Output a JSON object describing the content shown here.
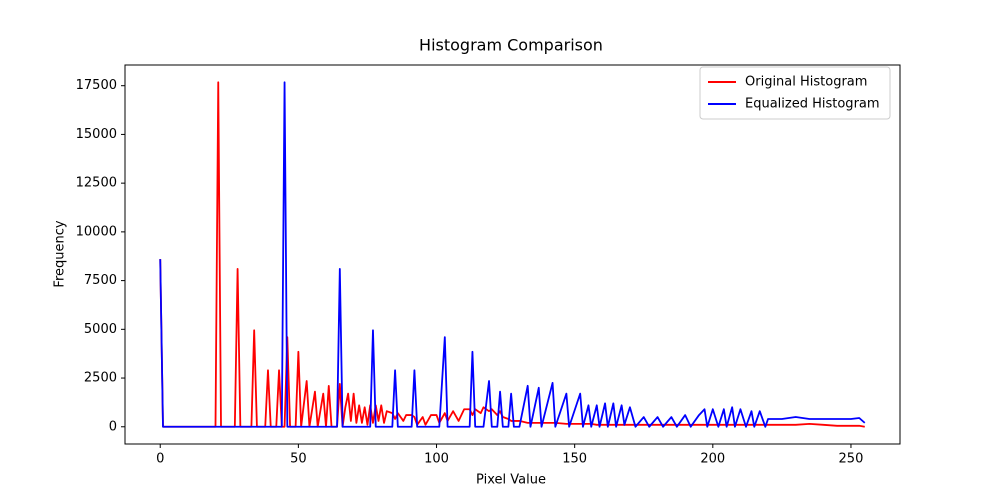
{
  "chart_data": {
    "type": "line",
    "title": "Histogram Comparison",
    "x_label": "Pixel Value",
    "y_label": "Frequency",
    "x": [
      0,
      1,
      20,
      21,
      22,
      27,
      28,
      29,
      33,
      34,
      35,
      38,
      39,
      40,
      42,
      43,
      44,
      45,
      46,
      47,
      49,
      50,
      51,
      53,
      54,
      56,
      57,
      59,
      60,
      61,
      62,
      64,
      65,
      66,
      67,
      68,
      69,
      70,
      71,
      72,
      73,
      74,
      75,
      76,
      77,
      78,
      79,
      80,
      81,
      82,
      84,
      85,
      86,
      88,
      89,
      91,
      92,
      93,
      95,
      96,
      98,
      100,
      101,
      103,
      104,
      106,
      108,
      110,
      112,
      113,
      114,
      116,
      117,
      119,
      120,
      122,
      123,
      124,
      126,
      127,
      128,
      130,
      133,
      134,
      137,
      138,
      142,
      143,
      147,
      148,
      152,
      153,
      155,
      156,
      158,
      159,
      161,
      162,
      164,
      165,
      167,
      168,
      170,
      172,
      175,
      177,
      180,
      182,
      185,
      187,
      190,
      192,
      195,
      197,
      198,
      200,
      202,
      204,
      205,
      207,
      208,
      210,
      212,
      214,
      215,
      217,
      219,
      220,
      225,
      230,
      235,
      240,
      245,
      250,
      253,
      255
    ],
    "series": [
      {
        "name": "Original Histogram",
        "color": "#ff0000",
        "values": [
          8600,
          0,
          0,
          17678,
          0,
          0,
          8100,
          0,
          0,
          4950,
          0,
          0,
          2900,
          0,
          0,
          2900,
          0,
          0,
          4600,
          0,
          0,
          3850,
          0,
          2350,
          0,
          1800,
          0,
          1700,
          0,
          2100,
          0,
          0,
          2200,
          0,
          1000,
          1700,
          300,
          1700,
          200,
          1100,
          200,
          1000,
          100,
          1100,
          200,
          1100,
          300,
          1100,
          200,
          800,
          700,
          400,
          700,
          300,
          600,
          600,
          500,
          100,
          500,
          100,
          600,
          600,
          200,
          700,
          300,
          800,
          300,
          900,
          900,
          600,
          900,
          700,
          1000,
          800,
          900,
          600,
          800,
          500,
          400,
          300,
          300,
          300,
          200,
          200,
          200,
          200,
          200,
          200,
          150,
          150,
          150,
          150,
          150,
          150,
          100,
          100,
          100,
          100,
          100,
          100,
          100,
          100,
          100,
          100,
          100,
          100,
          100,
          100,
          100,
          100,
          100,
          100,
          100,
          100,
          100,
          100,
          100,
          100,
          100,
          100,
          100,
          100,
          100,
          100,
          100,
          100,
          100,
          100,
          100,
          100,
          150,
          100,
          50,
          50,
          50,
          0
        ]
      },
      {
        "name": "Equalized Histogram",
        "color": "#0000ff",
        "values": [
          8600,
          0,
          0,
          0,
          0,
          0,
          0,
          0,
          0,
          0,
          0,
          0,
          0,
          0,
          0,
          0,
          0,
          17678,
          0,
          0,
          0,
          0,
          0,
          0,
          0,
          0,
          0,
          0,
          0,
          0,
          0,
          0,
          8100,
          0,
          0,
          0,
          0,
          0,
          0,
          0,
          0,
          0,
          0,
          0,
          4950,
          0,
          0,
          0,
          0,
          0,
          0,
          2900,
          0,
          0,
          0,
          0,
          2900,
          0,
          0,
          0,
          0,
          0,
          0,
          4600,
          0,
          0,
          0,
          0,
          0,
          3850,
          0,
          0,
          0,
          2350,
          0,
          0,
          1800,
          0,
          0,
          1700,
          0,
          0,
          2100,
          0,
          2000,
          0,
          2250,
          0,
          1700,
          0,
          1700,
          0,
          1100,
          0,
          1100,
          0,
          1200,
          0,
          1200,
          0,
          1100,
          100,
          1000,
          0,
          500,
          0,
          500,
          0,
          500,
          0,
          600,
          0,
          600,
          900,
          0,
          900,
          0,
          900,
          0,
          1000,
          0,
          900,
          0,
          800,
          0,
          800,
          0,
          400,
          400,
          500,
          400,
          400,
          400,
          400,
          450,
          200
        ]
      }
    ],
    "xlim": [
      -12.75,
      267.75
    ],
    "xticks": [
      0,
      50,
      100,
      150,
      200,
      250
    ],
    "ylim": [
      -884,
      18562
    ],
    "yticks": [
      0,
      2500,
      5000,
      7500,
      10000,
      12500,
      15000,
      17500
    ],
    "legend": "upper right"
  }
}
